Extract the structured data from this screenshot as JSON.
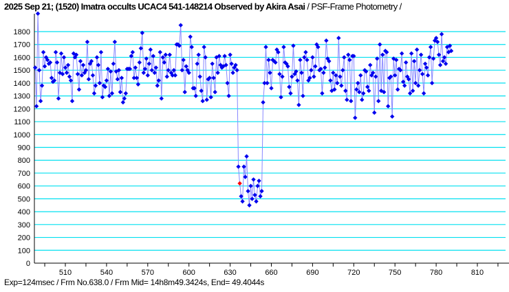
{
  "title": {
    "main": "2025 Sep 21; (1520) Imatra occults UCAC4 541-148214 Observed by Akira Asai",
    "sub": " / PSF-Frame Photometry /"
  },
  "footer": "Exp=124msec / Frm No.638.0 / Frm Mid= 14h8m49.3424s,  End= 49.4044s",
  "colors": {
    "grid": "#00e0f0",
    "line": "#8888ff",
    "marker": "#0000ee",
    "highlight": "#ff0000"
  },
  "chart_data": {
    "type": "line",
    "title": "2025 Sep 21; (1520) Imatra occults UCAC4 541-148214 Observed by Akira Asai / PSF-Frame Photometry /",
    "xlabel": "Frame No.",
    "ylabel": "",
    "xlim": [
      488,
      825
    ],
    "ylim": [
      0,
      1800
    ],
    "xticks": [
      510,
      540,
      570,
      600,
      630,
      660,
      690,
      720,
      750,
      780,
      810
    ],
    "yticks": [
      0,
      100,
      200,
      300,
      400,
      500,
      600,
      700,
      800,
      900,
      1000,
      1100,
      1200,
      1300,
      1400,
      1500,
      1600,
      1700,
      1800
    ],
    "grid": true,
    "highlight_frame": 638,
    "x_start": 488,
    "values": [
      1520,
      1220,
      1940,
      1500,
      1260,
      1380,
      1640,
      1530,
      1600,
      1580,
      1550,
      1560,
      1440,
      1410,
      1420,
      1640,
      1560,
      1280,
      1480,
      1630,
      1470,
      1600,
      1520,
      1480,
      1540,
      1450,
      1420,
      1260,
      1630,
      1600,
      1620,
      1470,
      1350,
      1570,
      1460,
      1540,
      1480,
      1500,
      1720,
      1430,
      1550,
      1570,
      1460,
      1320,
      1380,
      1600,
      1540,
      1400,
      1640,
      1290,
      1380,
      1370,
      1420,
      1510,
      1300,
      1490,
      1320,
      1550,
      1720,
      1490,
      1430,
      1500,
      1330,
      1440,
      1250,
      1280,
      1320,
      1510,
      1510,
      1510,
      1610,
      1640,
      1440,
      1520,
      1440,
      1390,
      1560,
      1670,
      1790,
      1480,
      1510,
      1590,
      1460,
      1550,
      1660,
      1500,
      1610,
      1480,
      1520,
      1380,
      1420,
      1640,
      1280,
      1600,
      1560,
      1620,
      1450,
      1500,
      1620,
      1480,
      1460,
      1500,
      1460,
      1700,
      1700,
      1690,
      1850,
      1500,
      1580,
      1330,
      1530,
      1500,
      1480,
      1760,
      1680,
      1360,
      1360,
      1300,
      1550,
      1620,
      1450,
      1340,
      1260,
      1680,
      1600,
      1270,
      1430,
      1440,
      1290,
      1550,
      1440,
      1330,
      1600,
      1480,
      1610,
      1540,
      1520,
      1530,
      1610,
      1540,
      1400,
      1300,
      1620,
      1550,
      1480,
      1520,
      1540,
      1500,
      750,
      620,
      520,
      480,
      750,
      670,
      830,
      560,
      450,
      600,
      500,
      650,
      530,
      480,
      600,
      640,
      520,
      560,
      1250,
      1400,
      1680,
      1400,
      1580,
      1480,
      1360,
      1580,
      1570,
      1560,
      1660,
      1640,
      1470,
      1290,
      1450,
      1680,
      1560,
      1550,
      1530,
      1370,
      1320,
      1450,
      1690,
      1470,
      1490,
      1420,
      1230,
      1580,
      1480,
      1300,
      1600,
      1640,
      1580,
      1420,
      1440,
      1500,
      1600,
      1450,
      1530,
      1700,
      1680,
      1500,
      1510,
      1320,
      1480,
      1520,
      1730,
      1590,
      1570,
      1420,
      1340,
      1480,
      1350,
      1460,
      1400,
      1750,
      1450,
      1380,
      1500,
      1600,
      1340,
      1270,
      1620,
      1580,
      1260,
      1610,
      1610,
      1130,
      1350,
      1400,
      1330,
      1460,
      1270,
      1320,
      1500,
      1490,
      1370,
      1340,
      1540,
      1460,
      1480,
      1170,
      1450,
      1590,
      1260,
      1700,
      1340,
      1620,
      1330,
      1650,
      1640,
      1220,
      1440,
      1450,
      1140,
      1590,
      1460,
      1580,
      1350,
      1510,
      1500,
      1630,
      1410,
      1380,
      1560,
      1450,
      1430,
      1320,
      1630,
      1340,
      1570,
      1400,
      1660,
      1380,
      1500,
      1620,
      1470,
      1320,
      1550,
      1520,
      1460,
      1600,
      1680,
      1400,
      1590,
      1730,
      1750,
      1720,
      1620,
      1540,
      1780,
      1570,
      1600,
      1550,
      1680,
      1640,
      1690,
      1650
    ]
  }
}
